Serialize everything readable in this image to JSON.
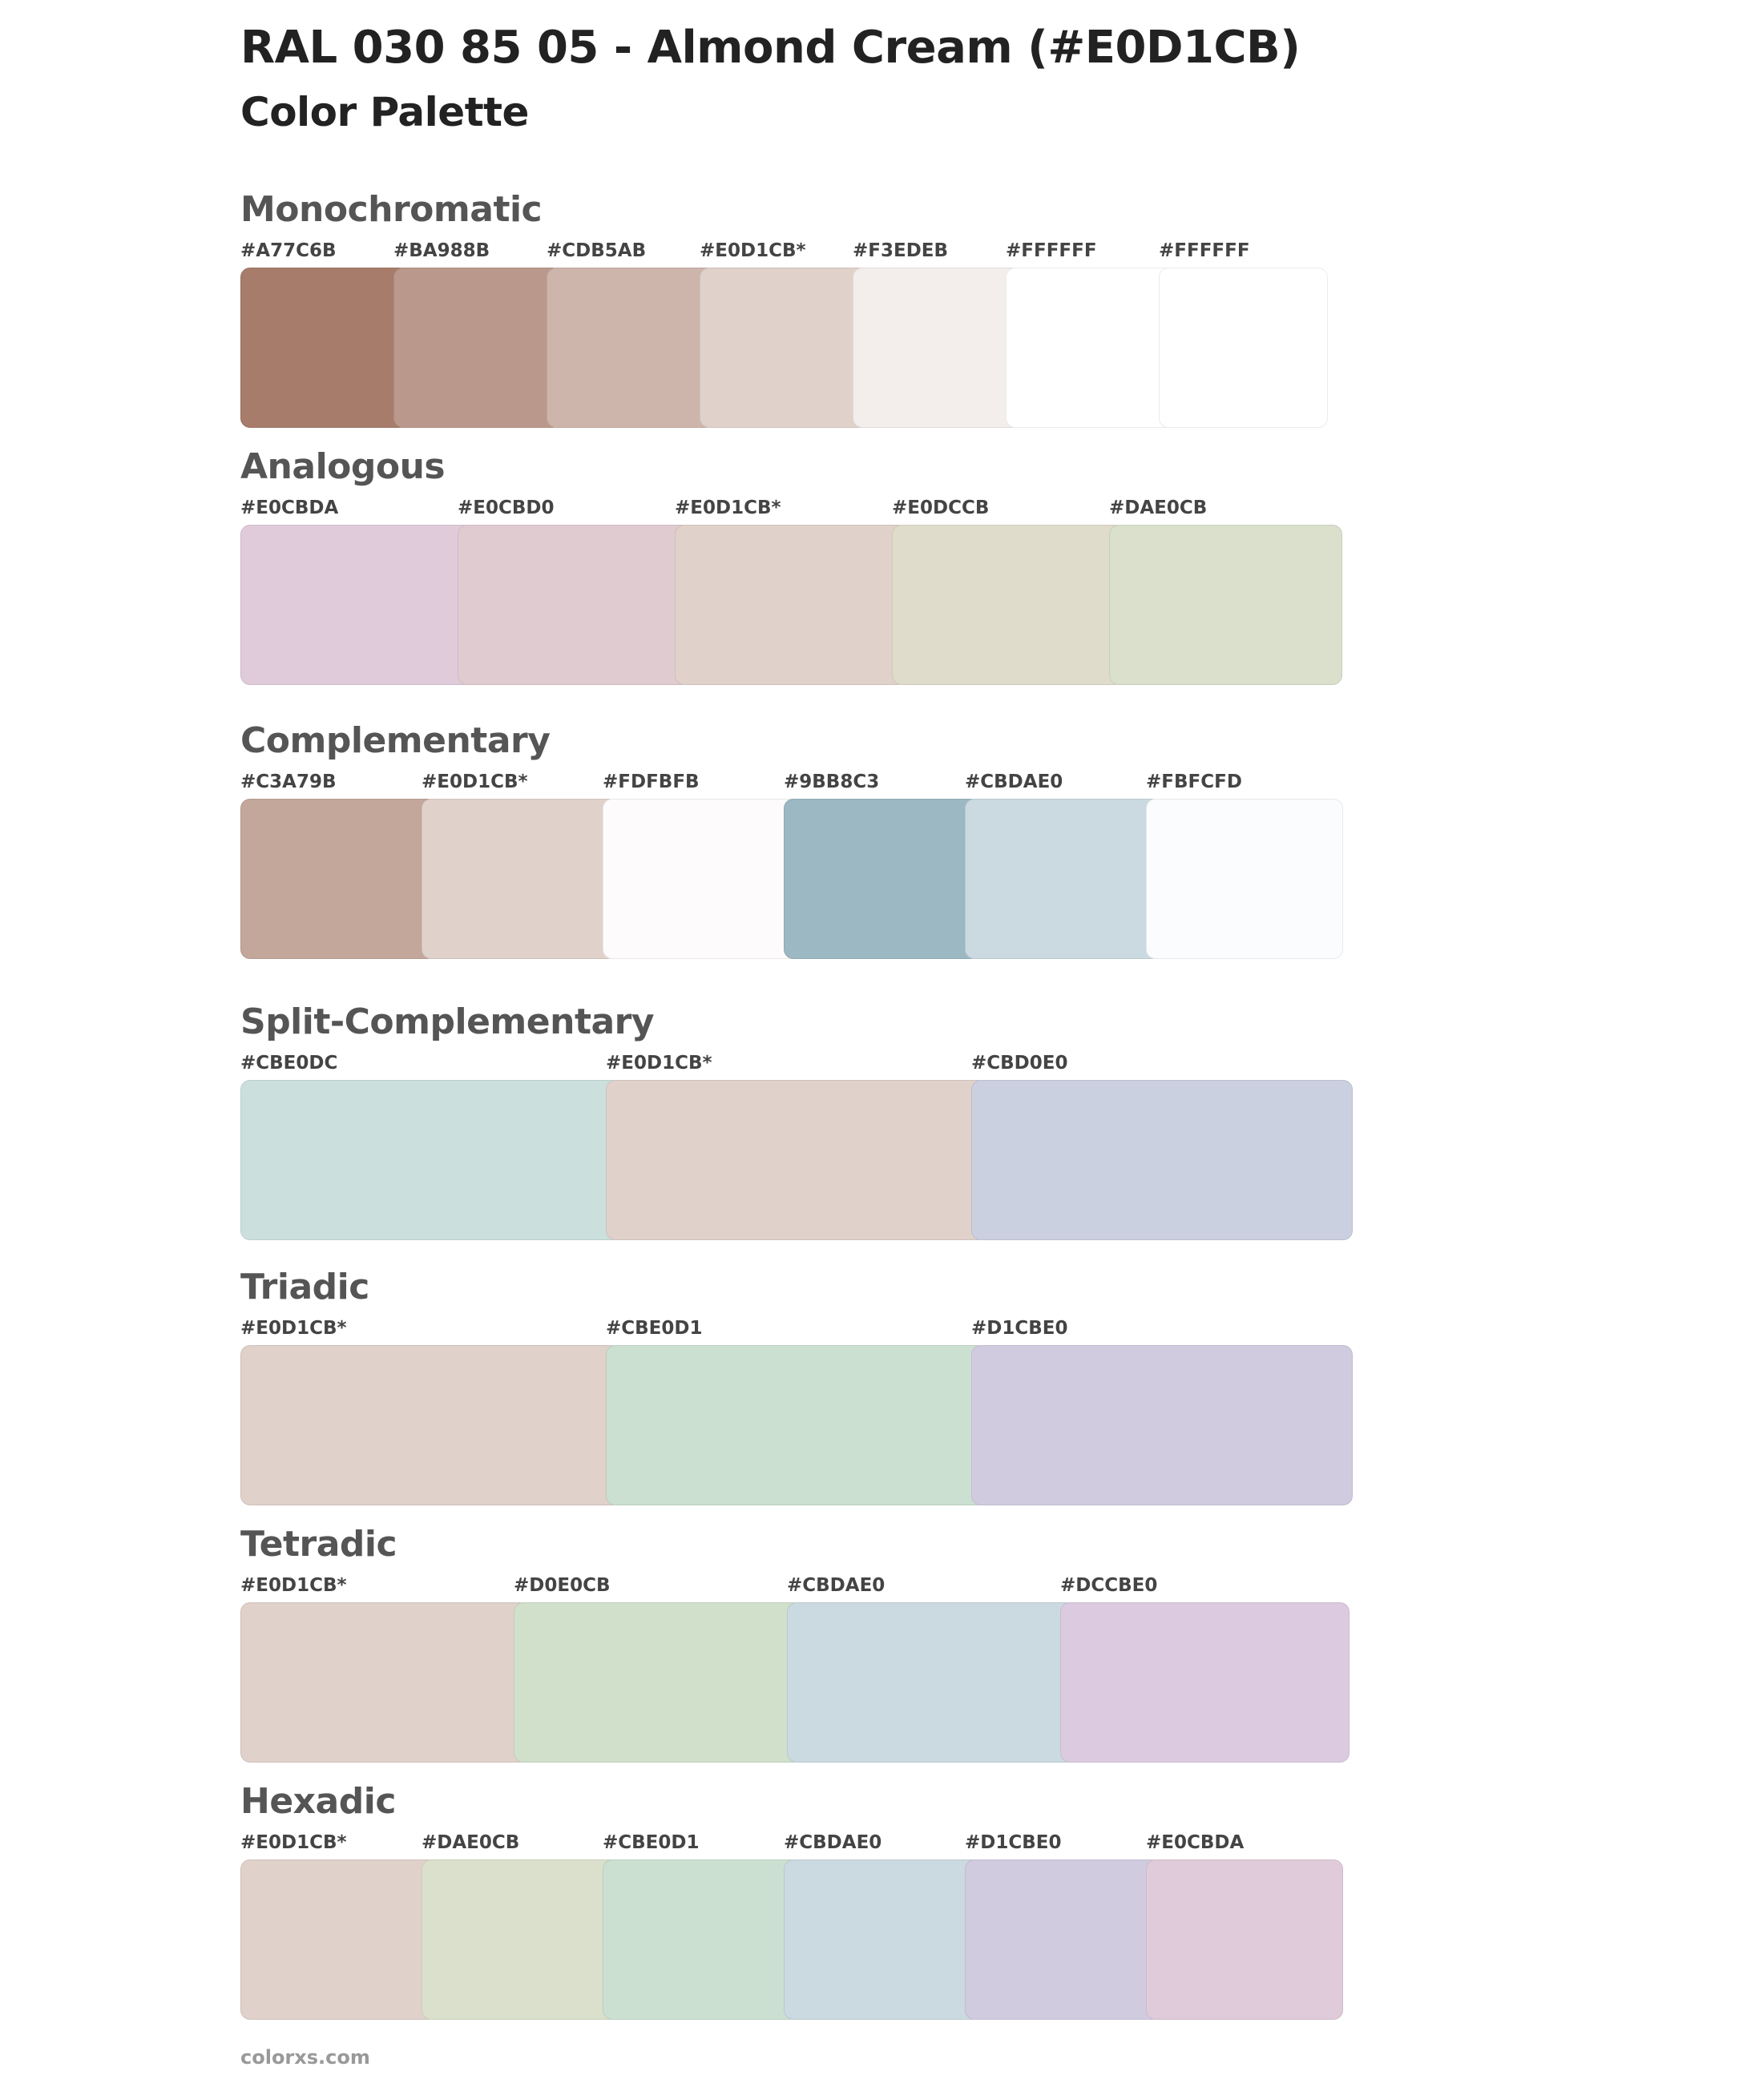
{
  "title": "RAL 030 85 05 - Almond Cream (#E0D1CB)",
  "subtitle": "Color Palette",
  "sections": [
    {
      "id": "monochromatic",
      "title": "Monochromatic",
      "swatches": [
        {
          "label": "#A77C6B",
          "color": "#A77C6B"
        },
        {
          "label": "#BA988B",
          "color": "#BA988B"
        },
        {
          "label": "#CDB5AB",
          "color": "#CDB5AB"
        },
        {
          "label": "#E0D1CB*",
          "color": "#E0D1CB"
        },
        {
          "label": "#F3EDEB",
          "color": "#F3EDEB"
        },
        {
          "label": "#FFFFFF",
          "color": "#FFFFFF"
        },
        {
          "label": "#FFFFFF",
          "color": "#FFFFFF"
        }
      ]
    },
    {
      "id": "analogous",
      "title": "Analogous",
      "swatches": [
        {
          "label": "#E0CBDA",
          "color": "#E0CBDA"
        },
        {
          "label": "#E0CBD0",
          "color": "#E0CBD0"
        },
        {
          "label": "#E0D1CB*",
          "color": "#E0D1CB"
        },
        {
          "label": "#E0DCCB",
          "color": "#E0DCCB"
        },
        {
          "label": "#DAE0CB",
          "color": "#DAE0CB"
        }
      ]
    },
    {
      "id": "complementary",
      "title": "Complementary",
      "swatches": [
        {
          "label": "#C3A79B",
          "color": "#C3A79B"
        },
        {
          "label": "#E0D1CB*",
          "color": "#E0D1CB"
        },
        {
          "label": "#FDFBFB",
          "color": "#FDFBFB"
        },
        {
          "label": "#9BB8C3",
          "color": "#9BB8C3"
        },
        {
          "label": "#CBDAE0",
          "color": "#CBDAE0"
        },
        {
          "label": "#FBFCFD",
          "color": "#FBFCFD"
        }
      ]
    },
    {
      "id": "split-complementary",
      "title": "Split-Complementary",
      "swatches": [
        {
          "label": "#CBE0DC",
          "color": "#CBE0DC"
        },
        {
          "label": "#E0D1CB*",
          "color": "#E0D1CB"
        },
        {
          "label": "#CBD0E0",
          "color": "#CBD0E0"
        }
      ]
    },
    {
      "id": "triadic",
      "title": "Triadic",
      "swatches": [
        {
          "label": "#E0D1CB*",
          "color": "#E0D1CB"
        },
        {
          "label": "#CBE0D1",
          "color": "#CBE0D1"
        },
        {
          "label": "#D1CBE0",
          "color": "#D1CBE0"
        }
      ]
    },
    {
      "id": "tetradic",
      "title": "Tetradic",
      "swatches": [
        {
          "label": "#E0D1CB*",
          "color": "#E0D1CB"
        },
        {
          "label": "#D0E0CB",
          "color": "#D0E0CB"
        },
        {
          "label": "#CBDAE0",
          "color": "#CBDAE0"
        },
        {
          "label": "#DCCBE0",
          "color": "#DCCBE0"
        }
      ]
    },
    {
      "id": "hexadic",
      "title": "Hexadic",
      "swatches": [
        {
          "label": "#E0D1CB*",
          "color": "#E0D1CB"
        },
        {
          "label": "#DAE0CB",
          "color": "#DAE0CB"
        },
        {
          "label": "#CBE0D1",
          "color": "#CBE0D1"
        },
        {
          "label": "#CBDAE0",
          "color": "#CBDAE0"
        },
        {
          "label": "#D1CBE0",
          "color": "#D1CBE0"
        },
        {
          "label": "#E0CBDA",
          "color": "#E0CBDA"
        }
      ]
    }
  ],
  "footer": "colorxs.com"
}
